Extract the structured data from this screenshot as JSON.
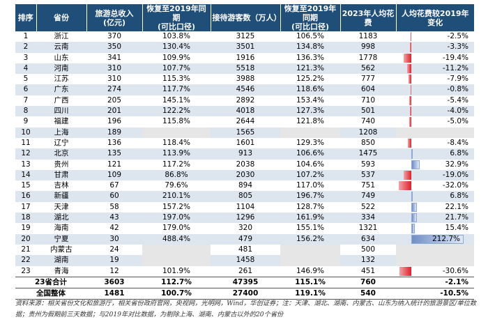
{
  "headers": [
    "排序",
    "省份",
    "旅游总收入\n(亿元)",
    "恢复至2019年同期\n(可比口径)",
    "接待游客数（万人）",
    "恢复至2019年同期\n(可比口径)",
    "2023年人均花费",
    "人均花费较2019年变化"
  ],
  "rows": [
    {
      "rank": "1",
      "prov": "浙江",
      "rev": "370",
      "rev_rec": "103.8%",
      "vis": "3125",
      "vis_rec": "106.5%",
      "spend": "1183",
      "chg": "-2.5%",
      "chg_val": -2.5
    },
    {
      "rank": "2",
      "prov": "云南",
      "rev": "350",
      "rev_rec": "130.4%",
      "vis": "3501",
      "vis_rec": "134.8%",
      "spend": "998",
      "chg": "-3.3%",
      "chg_val": -3.3
    },
    {
      "rank": "3",
      "prov": "山东",
      "rev": "341",
      "rev_rec": "109.9%",
      "vis": "1916",
      "vis_rec": "136.3%",
      "spend": "1778",
      "chg": "-19.4%",
      "chg_val": -19.4
    },
    {
      "rank": "4",
      "prov": "河南",
      "rev": "310",
      "rev_rec": "107.7%",
      "vis": "5518",
      "vis_rec": "121.3%",
      "spend": "562",
      "chg": "-11.2%",
      "chg_val": -11.2
    },
    {
      "rank": "5",
      "prov": "江苏",
      "rev": "310",
      "rev_rec": "115.3%",
      "vis": "3988",
      "vis_rec": "125.2%",
      "spend": "777",
      "chg": "-7.9%",
      "chg_val": -7.9
    },
    {
      "rank": "6",
      "prov": "广东",
      "rev": "274",
      "rev_rec": "117.7%",
      "vis": "4546",
      "vis_rec": "118.6%",
      "spend": "604",
      "chg": "-0.8%",
      "chg_val": -0.8
    },
    {
      "rank": "7",
      "prov": "广西",
      "rev": "205",
      "rev_rec": "145.1%",
      "vis": "2892",
      "vis_rec": "153.4%",
      "spend": "710",
      "chg": "-5.4%",
      "chg_val": -5.4
    },
    {
      "rank": "8",
      "prov": "四川",
      "rev": "201",
      "rev_rec": "122.2%",
      "vis": "4018",
      "vis_rec": "127.3%",
      "spend": "501",
      "chg": "-4.0%",
      "chg_val": -4.0
    },
    {
      "rank": "9",
      "prov": "福建",
      "rev": "196",
      "rev_rec": "115.8%",
      "vis": "2644",
      "vis_rec": "121.8%",
      "spend": "740",
      "chg": "-5.0%",
      "chg_val": -5.0
    },
    {
      "rank": "10",
      "prov": "上海",
      "rev": "189",
      "rev_rec": "",
      "vis": "1565",
      "vis_rec": "",
      "spend": "1208",
      "chg": "",
      "chg_val": null
    },
    {
      "rank": "11",
      "prov": "辽宁",
      "rev": "136",
      "rev_rec": "118.4%",
      "vis": "1601",
      "vis_rec": "129.3%",
      "spend": "850",
      "chg": "-8.4%",
      "chg_val": -8.4
    },
    {
      "rank": "12",
      "prov": "北京",
      "rev": "135",
      "rev_rec": "113.9%",
      "vis": "913",
      "vis_rec": "106.6%",
      "spend": "1475",
      "chg": "6.8%",
      "chg_val": 6.8
    },
    {
      "rank": "13",
      "prov": "贵州",
      "rev": "121",
      "rev_rec": "117.2%",
      "vis": "2038",
      "vis_rec": "104.6%",
      "spend": "593",
      "chg": "32.9%",
      "chg_val": 32.9
    },
    {
      "rank": "14",
      "prov": "甘肃",
      "rev": "109",
      "rev_rec": "86.8%",
      "vis": "2030",
      "vis_rec": "107.2%",
      "spend": "537",
      "chg": "-19.0%",
      "chg_val": -19.0
    },
    {
      "rank": "15",
      "prov": "吉林",
      "rev": "67",
      "rev_rec": "79.6%",
      "vis": "894",
      "vis_rec": "117.0%",
      "spend": "751",
      "chg": "-32.0%",
      "chg_val": -32.0
    },
    {
      "rank": "16",
      "prov": "新疆",
      "rev": "60",
      "rev_rec": "210.1%",
      "vis": "805",
      "vis_rec": "196.7%",
      "spend": "749",
      "chg": "6.8%",
      "chg_val": 6.8
    },
    {
      "rank": "17",
      "prov": "天津",
      "rev": "58",
      "rev_rec": "157.2%",
      "vis": "1104",
      "vis_rec": "128.7%",
      "spend": "522",
      "chg": "22.1%",
      "chg_val": 22.1
    },
    {
      "rank": "18",
      "prov": "湖北",
      "rev": "43",
      "rev_rec": "197.0%",
      "vis": "1296",
      "vis_rec": "161.9%",
      "spend": "334",
      "chg": "21.7%",
      "chg_val": 21.7
    },
    {
      "rank": "19",
      "prov": "海南",
      "rev": "42",
      "rev_rec": "179.0%",
      "vis": "320",
      "vis_rec": "155.1%",
      "spend": "1321",
      "chg": "15.4%",
      "chg_val": 15.4
    },
    {
      "rank": "20",
      "prov": "宁夏",
      "rev": "30",
      "rev_rec": "488.4%",
      "vis": "479",
      "vis_rec": "156.2%",
      "spend": "634",
      "chg": "212.7%",
      "chg_val": 212.7
    },
    {
      "rank": "21",
      "prov": "内蒙古",
      "rev": "24",
      "rev_rec": "",
      "vis": "481",
      "vis_rec": "",
      "spend": "500",
      "chg": "",
      "chg_val": null
    },
    {
      "rank": "22",
      "prov": "湖南",
      "rev": "19",
      "rev_rec": "",
      "vis": "1458",
      "vis_rec": "",
      "spend": "132",
      "chg": "",
      "chg_val": null
    },
    {
      "rank": "23",
      "prov": "青海",
      "rev": "12",
      "rev_rec": "101.9%",
      "vis": "261",
      "vis_rec": "146.9%",
      "spend": "451",
      "chg": "-30.6%",
      "chg_val": -30.6
    }
  ],
  "summary": [
    {
      "rank": "23省合计",
      "rev": "3603",
      "rev_rec": "112.7%",
      "vis": "47395",
      "vis_rec": "115.1%",
      "spend": "760",
      "chg": "-2.1%"
    },
    {
      "rank": "全国整体",
      "rev": "1481",
      "rev_rec": "100.7%",
      "vis": "27400",
      "vis_rec": "119.1%",
      "spend": "540",
      "chg": "-10.5%"
    }
  ],
  "note": "资料来源：相关省份文化和旅游厅，相关省份政府官网，央视网，光明网，Wind，华创证券；注：天津、湖北、湖南、内蒙古、山东为纳入统计的旅游景区/单位数据；贵州为假期前三天数据；与2019年对比数据，为剔除上海、湖南、内蒙古以外的20个省份",
  "colors": {
    "header_bg": "#1f4e79",
    "zebra": "#dde5ef",
    "neg_bar": "#e0202a",
    "pos_bar": "#6f8fc6"
  }
}
